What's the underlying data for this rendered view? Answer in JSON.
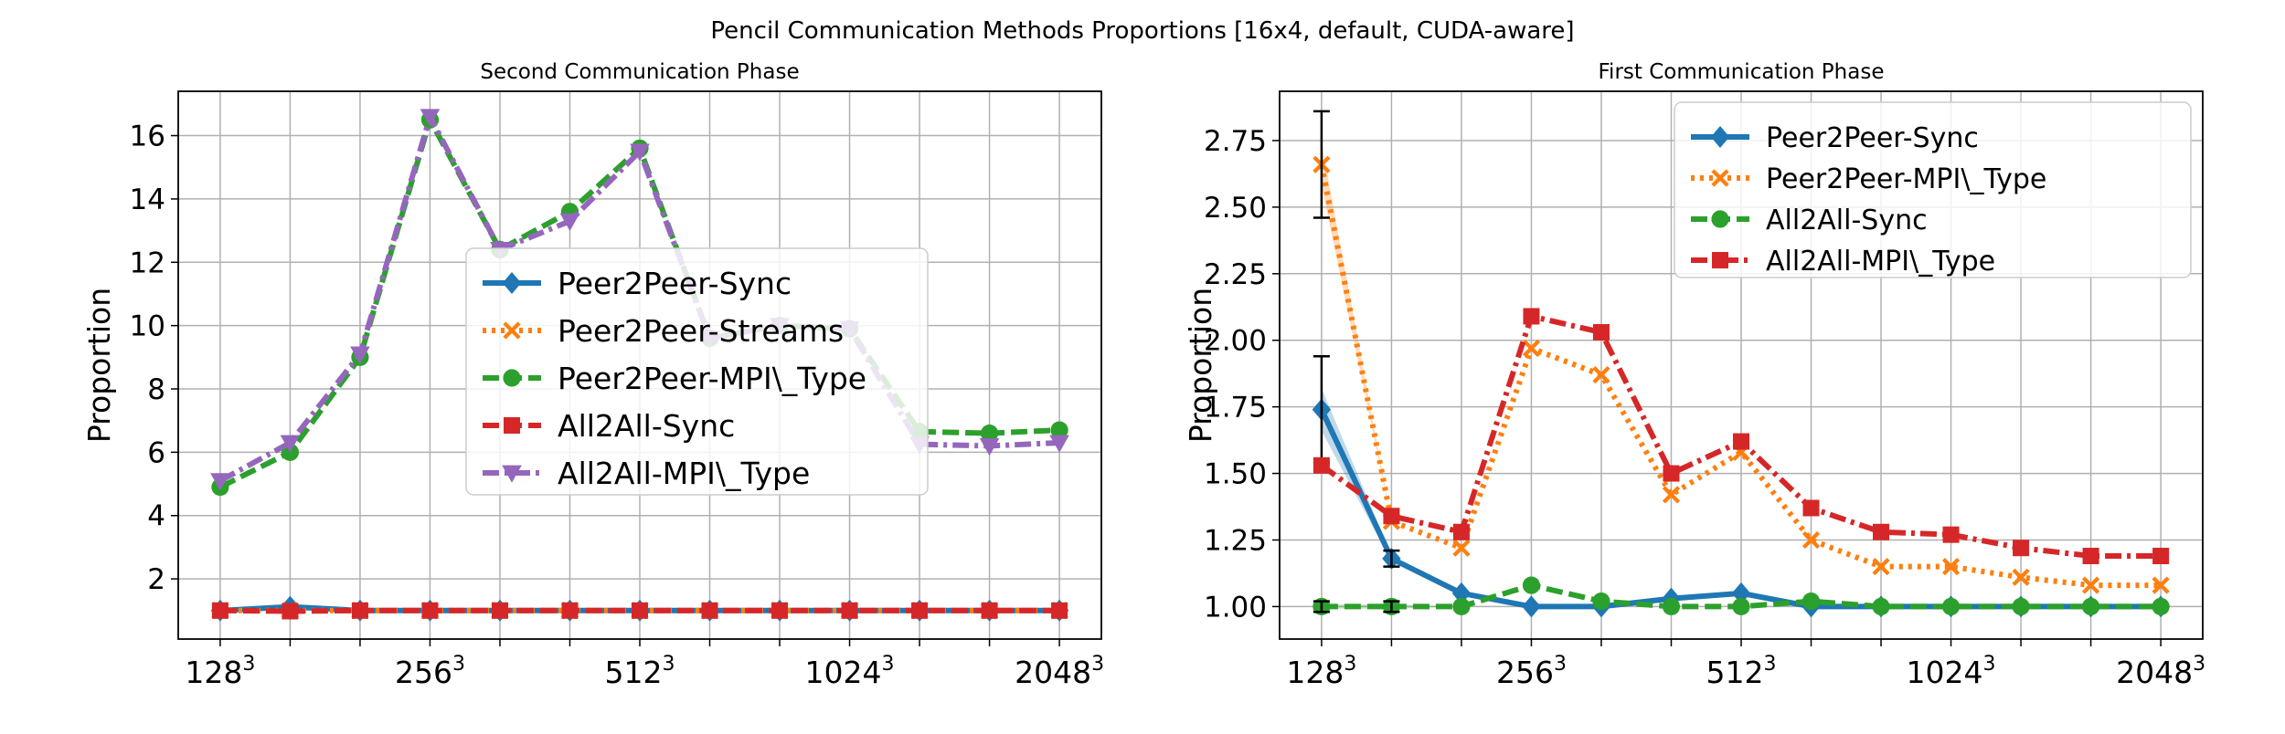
{
  "figure": {
    "suptitle": "Pencil Communication Methods Proportions [16x4, default, CUDA-aware]"
  },
  "chart_data": [
    {
      "type": "line",
      "title": "Second Communication Phase",
      "xlabel": "",
      "ylabel": "Proportion",
      "x_tick_bases": [
        "128",
        "256",
        "512",
        "1024",
        "2048"
      ],
      "x_tick_exponent": "3",
      "x_tick_positions": [
        0,
        3,
        6,
        9,
        12
      ],
      "xlim": [
        -0.6,
        12.6
      ],
      "ylim": [
        0.1,
        17.4
      ],
      "y_ticks": [
        2,
        4,
        6,
        8,
        10,
        12,
        14,
        16
      ],
      "y_tick_labels": [
        "2",
        "4",
        "6",
        "8",
        "10",
        "12",
        "14",
        "16"
      ],
      "grid": true,
      "legend_position": "center",
      "series": [
        {
          "name": "Peer2Peer-Sync",
          "color": "#1f77b4",
          "dash": "solid",
          "marker": "diamond",
          "values": [
            1.0,
            1.12,
            1.0,
            1.0,
            1.0,
            1.0,
            1.0,
            1.0,
            1.0,
            1.0,
            1.0,
            1.0,
            1.0
          ]
        },
        {
          "name": "Peer2Peer-Streams",
          "color": "#ff7f0e",
          "dash": "dotted",
          "marker": "x",
          "values": [
            1.0,
            1.0,
            1.0,
            1.0,
            1.0,
            1.0,
            1.0,
            1.0,
            1.0,
            1.0,
            1.0,
            1.0,
            1.0
          ]
        },
        {
          "name": "Peer2Peer-MPI\\_Type",
          "color": "#2ca02c",
          "dash": "dashed",
          "marker": "circle",
          "values": [
            4.9,
            6.0,
            9.0,
            16.5,
            12.4,
            13.6,
            15.6,
            9.6,
            10.0,
            9.9,
            6.65,
            6.6,
            6.7
          ]
        },
        {
          "name": "All2All-Sync",
          "color": "#d62728",
          "dash": "dashed",
          "marker": "square",
          "values": [
            1.0,
            0.98,
            1.0,
            1.0,
            1.0,
            1.0,
            1.0,
            1.0,
            1.0,
            1.0,
            1.0,
            1.0,
            1.0
          ]
        },
        {
          "name": "All2All-MPI\\_Type",
          "color": "#9467bd",
          "dash": "dashdot",
          "marker": "triangle-down",
          "values": [
            5.1,
            6.3,
            9.1,
            16.6,
            12.4,
            13.3,
            15.5,
            9.6,
            10.0,
            9.9,
            6.25,
            6.2,
            6.3
          ]
        }
      ]
    },
    {
      "type": "line",
      "title": "First Communication Phase",
      "xlabel": "",
      "ylabel": "Proportion",
      "x_tick_bases": [
        "128",
        "256",
        "512",
        "1024",
        "2048"
      ],
      "x_tick_exponent": "3",
      "x_tick_positions": [
        0,
        3,
        6,
        9,
        12
      ],
      "xlim": [
        -0.6,
        12.6
      ],
      "ylim": [
        0.878,
        2.935
      ],
      "y_ticks": [
        1.0,
        1.25,
        1.5,
        1.75,
        2.0,
        2.25,
        2.5,
        2.75
      ],
      "y_tick_labels": [
        "1.00",
        "1.25",
        "1.50",
        "1.75",
        "2.00",
        "2.25",
        "2.50",
        "2.75"
      ],
      "grid": true,
      "legend_position": "upper right",
      "series": [
        {
          "name": "Peer2Peer-Sync",
          "color": "#1f77b4",
          "dash": "solid",
          "marker": "diamond",
          "values": [
            1.74,
            1.18,
            1.05,
            1.0,
            1.0,
            1.03,
            1.05,
            1.0,
            1.0,
            1.0,
            1.0,
            1.0,
            1.0
          ],
          "error": [
            0.2,
            0.03,
            0,
            0,
            0,
            0,
            0,
            0,
            0,
            0,
            0,
            0,
            0
          ]
        },
        {
          "name": "Peer2Peer-MPI\\_Type",
          "color": "#ff7f0e",
          "dash": "dotted",
          "marker": "x",
          "values": [
            2.66,
            1.32,
            1.22,
            1.97,
            1.87,
            1.42,
            1.58,
            1.25,
            1.15,
            1.15,
            1.11,
            1.08,
            1.08
          ],
          "error": [
            0.2,
            0,
            0,
            0,
            0,
            0,
            0,
            0,
            0,
            0,
            0,
            0,
            0
          ]
        },
        {
          "name": "All2All-Sync",
          "color": "#2ca02c",
          "dash": "dashed",
          "marker": "circle",
          "values": [
            1.0,
            1.0,
            1.0,
            1.08,
            1.02,
            1.0,
            1.0,
            1.02,
            1.0,
            1.0,
            1.0,
            1.0,
            1.0
          ],
          "error": [
            0.02,
            0.02,
            0,
            0,
            0,
            0,
            0,
            0,
            0,
            0,
            0,
            0,
            0
          ]
        },
        {
          "name": "All2All-MPI\\_Type",
          "color": "#d62728",
          "dash": "dashdot",
          "marker": "square",
          "values": [
            1.53,
            1.34,
            1.28,
            2.09,
            2.03,
            1.5,
            1.62,
            1.37,
            1.28,
            1.27,
            1.22,
            1.19,
            1.19
          ],
          "error": [
            0,
            0,
            0,
            0,
            0,
            0,
            0,
            0,
            0,
            0,
            0,
            0,
            0
          ]
        }
      ]
    }
  ]
}
